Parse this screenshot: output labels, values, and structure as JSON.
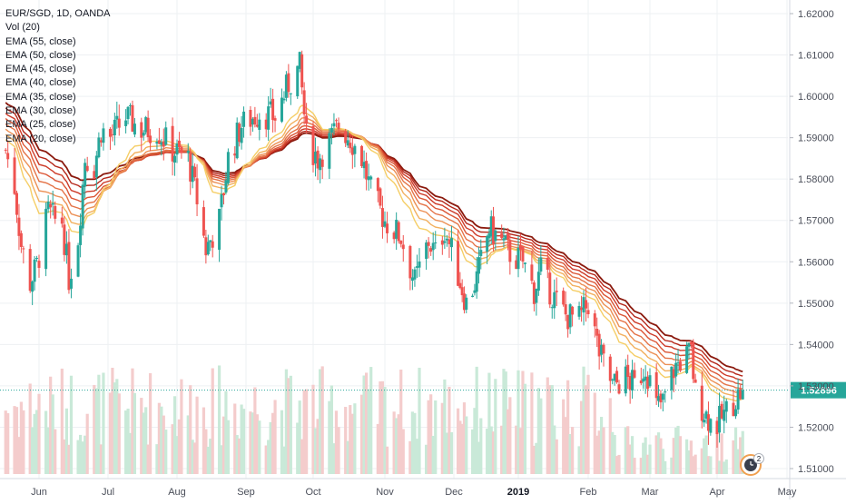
{
  "chart_data": {
    "type": "candlestick",
    "symbol": "EUR/SGD, 1D, OANDA",
    "indicators": [
      "Vol (20)",
      "EMA (55, close)",
      "EMA (50, close)",
      "EMA (45, close)",
      "EMA (40, close)",
      "EMA (35, close)",
      "EMA (30, close)",
      "EMA (25, close)",
      "EMA (20, close)"
    ],
    "x_ticks": [
      "Jun",
      "Jul",
      "Aug",
      "Sep",
      "Oct",
      "Nov",
      "Dec",
      "2019",
      "Feb",
      "Mar",
      "Apr",
      "May"
    ],
    "y_ticks": [
      "1.62000",
      "1.61000",
      "1.60000",
      "1.59000",
      "1.58000",
      "1.57000",
      "1.56000",
      "1.55000",
      "1.54000",
      "1.53000",
      "1.52000",
      "1.51000"
    ],
    "y_range": [
      1.51,
      1.62
    ],
    "last_price": "1.52896",
    "last_price_value": 1.52896,
    "colors": {
      "up": "#26a69a",
      "down": "#ef5350",
      "price_line": "#26a69a",
      "vol_up": "#c9e9d8",
      "vol_down": "#f4cccc"
    },
    "ema_colors": [
      "#8b1a0e",
      "#b5281b",
      "#cd3b29",
      "#db5636",
      "#e47347",
      "#ec9055",
      "#f2b05f",
      "#f5ce66"
    ],
    "close_path": [
      [
        "2018-05-17",
        1.587
      ],
      [
        "2018-05-21",
        1.578
      ],
      [
        "2018-05-24",
        1.564
      ],
      [
        "2018-05-28",
        1.555
      ],
      [
        "2018-05-31",
        1.559
      ],
      [
        "2018-06-05",
        1.572
      ],
      [
        "2018-06-08",
        1.57
      ],
      [
        "2018-06-11",
        1.57
      ],
      [
        "2018-06-14",
        1.556
      ],
      [
        "2018-06-18",
        1.566
      ],
      [
        "2018-06-21",
        1.585
      ],
      [
        "2018-06-25",
        1.583
      ],
      [
        "2018-06-28",
        1.592
      ],
      [
        "2018-07-02",
        1.59
      ],
      [
        "2018-07-09",
        1.595
      ],
      [
        "2018-07-16",
        1.592
      ],
      [
        "2018-07-23",
        1.592
      ],
      [
        "2018-07-30",
        1.587
      ],
      [
        "2018-08-06",
        1.585
      ],
      [
        "2018-08-10",
        1.575
      ],
      [
        "2018-08-14",
        1.563
      ],
      [
        "2018-08-20",
        1.57
      ],
      [
        "2018-08-24",
        1.585
      ],
      [
        "2018-08-30",
        1.593
      ],
      [
        "2018-09-07",
        1.596
      ],
      [
        "2018-09-14",
        1.595
      ],
      [
        "2018-09-20",
        1.603
      ],
      [
        "2018-09-25",
        1.607
      ],
      [
        "2018-09-28",
        1.59
      ],
      [
        "2018-10-03",
        1.585
      ],
      [
        "2018-10-09",
        1.59
      ],
      [
        "2018-10-12",
        1.593
      ],
      [
        "2018-10-17",
        1.59
      ],
      [
        "2018-10-22",
        1.585
      ],
      [
        "2018-10-26",
        1.577
      ],
      [
        "2018-11-01",
        1.57
      ],
      [
        "2018-11-08",
        1.566
      ],
      [
        "2018-11-14",
        1.555
      ],
      [
        "2018-11-20",
        1.565
      ],
      [
        "2018-11-23",
        1.562
      ],
      [
        "2018-11-27",
        1.568
      ],
      [
        "2018-12-03",
        1.557
      ],
      [
        "2018-12-07",
        1.55
      ],
      [
        "2018-12-12",
        1.556
      ],
      [
        "2018-12-18",
        1.568
      ],
      [
        "2018-12-24",
        1.565
      ],
      [
        "2018-12-28",
        1.562
      ],
      [
        "2019-01-03",
        1.56
      ],
      [
        "2019-01-08",
        1.553
      ],
      [
        "2019-01-11",
        1.558
      ],
      [
        "2019-01-16",
        1.552
      ],
      [
        "2019-01-22",
        1.547
      ],
      [
        "2019-01-28",
        1.546
      ],
      [
        "2019-02-01",
        1.55
      ],
      [
        "2019-02-06",
        1.538
      ],
      [
        "2019-02-12",
        1.53
      ],
      [
        "2019-02-18",
        1.532
      ],
      [
        "2019-02-22",
        1.53
      ],
      [
        "2019-02-27",
        1.535
      ],
      [
        "2019-03-04",
        1.525
      ],
      [
        "2019-03-07",
        1.526
      ],
      [
        "2019-03-12",
        1.534
      ],
      [
        "2019-03-15",
        1.536
      ],
      [
        "2019-03-20",
        1.538
      ],
      [
        "2019-03-22",
        1.528
      ],
      [
        "2019-03-27",
        1.523
      ],
      [
        "2019-03-31",
        1.52
      ],
      [
        "2019-04-04",
        1.523
      ],
      [
        "2019-04-09",
        1.527
      ],
      [
        "2019-04-12",
        1.529
      ]
    ]
  },
  "legend": {
    "symbol": "EUR/SGD, 1D, OANDA",
    "items": [
      "Vol (20)",
      "EMA (55, close)",
      "EMA (50, close)",
      "EMA (45, close)",
      "EMA (40, close)",
      "EMA (35, close)",
      "EMA (30, close)",
      "EMA (25, close)",
      "EMA (20, close)"
    ]
  },
  "badge": {
    "count": "2",
    "icon": "clock-icon"
  }
}
